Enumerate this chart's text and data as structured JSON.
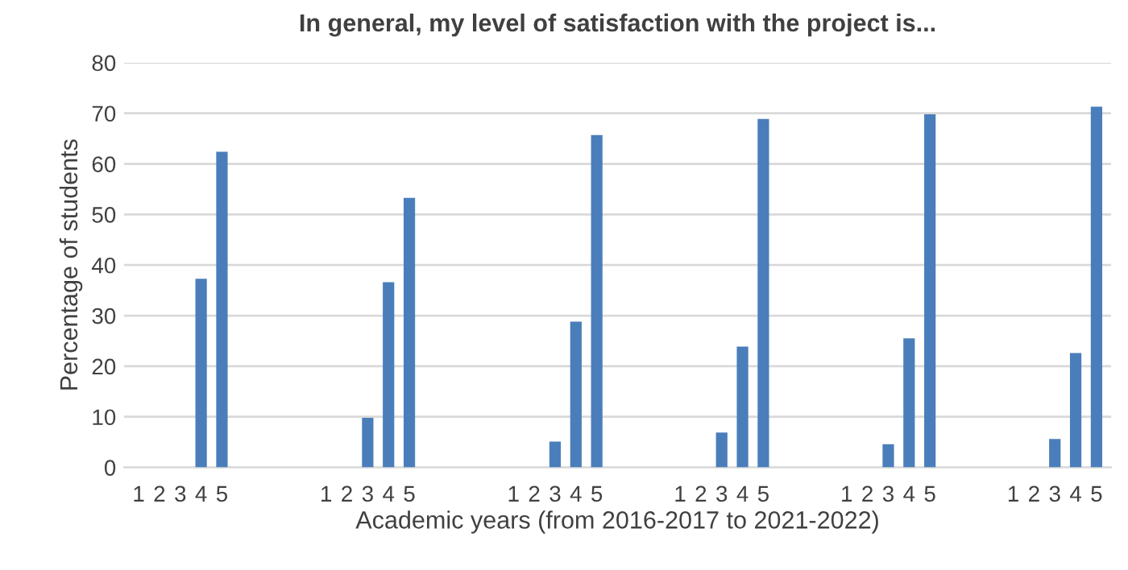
{
  "chart_data": {
    "type": "bar",
    "title": "In general, my level of satisfaction with the project is...",
    "xlabel": "Academic years (from 2016-2017 to 2021-2022)",
    "ylabel": "Percentage of students",
    "categories": [
      "1",
      "2",
      "3",
      "4",
      "5",
      null,
      null,
      null,
      null,
      "1",
      "2",
      "3",
      "4",
      "5",
      null,
      null,
      null,
      null,
      "1",
      "2",
      "3",
      "4",
      "5",
      null,
      null,
      null,
      "1",
      "2",
      "3",
      "4",
      "5",
      null,
      null,
      null,
      "1",
      "2",
      "3",
      "4",
      "5",
      null,
      null,
      null,
      "1",
      "2",
      "3",
      "4",
      "5"
    ],
    "values": [
      0,
      0,
      0,
      37.3,
      62.4,
      null,
      null,
      null,
      null,
      0,
      0,
      9.8,
      36.6,
      53.3,
      null,
      null,
      null,
      null,
      0,
      0,
      5.1,
      28.8,
      65.7,
      null,
      null,
      null,
      0,
      0,
      6.9,
      23.9,
      68.9,
      null,
      null,
      null,
      0,
      0,
      4.6,
      25.5,
      69.8,
      null,
      null,
      null,
      0,
      0,
      5.6,
      22.6,
      71.3
    ],
    "color": "#4a7ebb",
    "ylim": [
      0,
      80
    ],
    "yticks": [
      0,
      10,
      20,
      30,
      40,
      50,
      60,
      70,
      80
    ],
    "grid": "y"
  }
}
